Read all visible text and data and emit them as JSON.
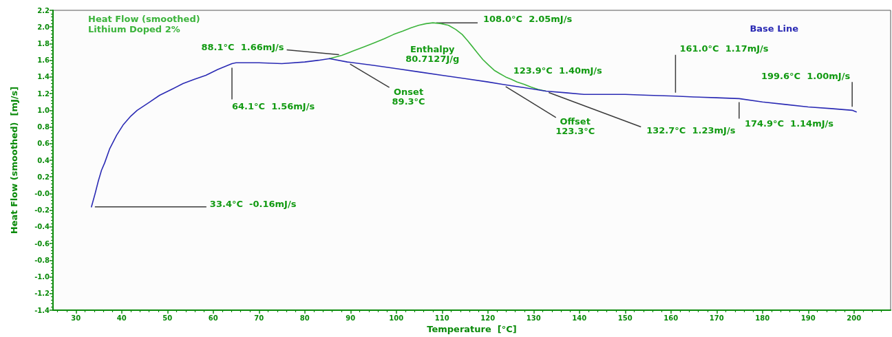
{
  "chart_data": {
    "type": "line",
    "xlabel": "Temperature  [°C]",
    "ylabel": "Heat Flow (smoothed)  [mJ/s]",
    "xlim": [
      25,
      208
    ],
    "xticks": [
      {
        "value": 26,
        "label": null
      },
      {
        "value": 28,
        "label": null
      },
      30,
      {
        "value": 32,
        "label": null
      },
      {
        "value": 34,
        "label": null
      },
      {
        "value": 36,
        "label": null
      },
      {
        "value": 38,
        "label": null
      },
      40,
      {
        "value": 42,
        "label": null
      },
      {
        "value": 44,
        "label": null
      },
      {
        "value": 46,
        "label": null
      },
      {
        "value": 48,
        "label": null
      },
      50,
      {
        "value": 52,
        "label": null
      },
      {
        "value": 54,
        "label": null
      },
      {
        "value": 56,
        "label": null
      },
      {
        "value": 58,
        "label": null
      },
      60,
      {
        "value": 62,
        "label": null
      },
      {
        "value": 64,
        "label": null
      },
      {
        "value": 66,
        "label": null
      },
      {
        "value": 68,
        "label": null
      },
      70,
      {
        "value": 72,
        "label": null
      },
      {
        "value": 74,
        "label": null
      },
      {
        "value": 76,
        "label": null
      },
      {
        "value": 78,
        "label": null
      },
      80,
      {
        "value": 82,
        "label": null
      },
      {
        "value": 84,
        "label": null
      },
      {
        "value": 86,
        "label": null
      },
      {
        "value": 88,
        "label": null
      },
      90,
      {
        "value": 92,
        "label": null
      },
      {
        "value": 94,
        "label": null
      },
      {
        "value": 96,
        "label": null
      },
      {
        "value": 98,
        "label": null
      },
      100,
      {
        "value": 102,
        "label": null
      },
      {
        "value": 104,
        "label": null
      },
      {
        "value": 106,
        "label": null
      },
      {
        "value": 108,
        "label": null
      },
      110,
      {
        "value": 112,
        "label": null
      },
      {
        "value": 114,
        "label": null
      },
      {
        "value": 116,
        "label": null
      },
      {
        "value": 118,
        "label": null
      },
      120,
      {
        "value": 122,
        "label": null
      },
      {
        "value": 124,
        "label": null
      },
      {
        "value": 126,
        "label": null
      },
      {
        "value": 128,
        "label": null
      },
      130,
      {
        "value": 132,
        "label": null
      },
      {
        "value": 134,
        "label": null
      },
      {
        "value": 136,
        "label": null
      },
      {
        "value": 138,
        "label": null
      },
      140,
      {
        "value": 142,
        "label": null
      },
      {
        "value": 144,
        "label": null
      },
      {
        "value": 146,
        "label": null
      },
      {
        "value": 148,
        "label": null
      },
      150,
      {
        "value": 152,
        "label": null
      },
      {
        "value": 154,
        "label": null
      },
      {
        "value": 156,
        "label": null
      },
      {
        "value": 158,
        "label": null
      },
      160,
      {
        "value": 162,
        "label": null
      },
      {
        "value": 164,
        "label": null
      },
      {
        "value": 166,
        "label": null
      },
      {
        "value": 168,
        "label": null
      },
      170,
      {
        "value": 172,
        "label": null
      },
      {
        "value": 174,
        "label": null
      },
      {
        "value": 176,
        "label": null
      },
      {
        "value": 178,
        "label": null
      },
      180,
      {
        "value": 182,
        "label": null
      },
      {
        "value": 184,
        "label": null
      },
      {
        "value": 186,
        "label": null
      },
      {
        "value": 188,
        "label": null
      },
      190,
      {
        "value": 192,
        "label": null
      },
      {
        "value": 194,
        "label": null
      },
      {
        "value": 196,
        "label": null
      },
      {
        "value": 198,
        "label": null
      },
      200,
      {
        "value": 202,
        "label": null
      },
      {
        "value": 204,
        "label": null
      },
      {
        "value": 206,
        "label": null
      }
    ],
    "ylim": [
      -1.4,
      2.2
    ],
    "yticks": [
      -1.4,
      {
        "value": -1.36,
        "label": null
      },
      {
        "value": -1.32,
        "label": null
      },
      {
        "value": -1.28,
        "label": null
      },
      {
        "value": -1.24,
        "label": null
      },
      -1.2,
      {
        "value": -1.16,
        "label": null
      },
      {
        "value": -1.12,
        "label": null
      },
      {
        "value": -1.08,
        "label": null
      },
      {
        "value": -1.04,
        "label": null
      },
      {
        "value": -1,
        "label": "-1.0"
      },
      {
        "value": -0.96,
        "label": null
      },
      {
        "value": -0.92,
        "label": null
      },
      {
        "value": -0.88,
        "label": null
      },
      {
        "value": -0.84,
        "label": null
      },
      -0.8,
      {
        "value": -0.76,
        "label": null
      },
      {
        "value": -0.72,
        "label": null
      },
      {
        "value": -0.68,
        "label": null
      },
      {
        "value": -0.64,
        "label": null
      },
      -0.6,
      {
        "value": -0.56,
        "label": null
      },
      {
        "value": -0.52,
        "label": null
      },
      {
        "value": -0.48,
        "label": null
      },
      {
        "value": -0.44,
        "label": null
      },
      -0.4,
      {
        "value": -0.36,
        "label": null
      },
      {
        "value": -0.32,
        "label": null
      },
      {
        "value": -0.28,
        "label": null
      },
      {
        "value": -0.24,
        "label": null
      },
      -0.2,
      {
        "value": -0.16,
        "label": null
      },
      {
        "value": -0.12,
        "label": null
      },
      {
        "value": -0.08,
        "label": null
      },
      {
        "value": -0.04,
        "label": null
      },
      {
        "value": 0,
        "label": "-0.0"
      },
      {
        "value": 0.04,
        "label": null
      },
      {
        "value": 0.08,
        "label": null
      },
      {
        "value": 0.12,
        "label": null
      },
      {
        "value": 0.16,
        "label": null
      },
      0.2,
      {
        "value": 0.24,
        "label": null
      },
      {
        "value": 0.28,
        "label": null
      },
      {
        "value": 0.32,
        "label": null
      },
      {
        "value": 0.36,
        "label": null
      },
      0.4,
      {
        "value": 0.44,
        "label": null
      },
      {
        "value": 0.48,
        "label": null
      },
      {
        "value": 0.52,
        "label": null
      },
      {
        "value": 0.56,
        "label": null
      },
      0.6,
      {
        "value": 0.64,
        "label": null
      },
      {
        "value": 0.68,
        "label": null
      },
      {
        "value": 0.72,
        "label": null
      },
      {
        "value": 0.76,
        "label": null
      },
      0.8,
      {
        "value": 0.84,
        "label": null
      },
      {
        "value": 0.88,
        "label": null
      },
      {
        "value": 0.92,
        "label": null
      },
      {
        "value": 0.96,
        "label": null
      },
      {
        "value": 1,
        "label": "1.0"
      },
      {
        "value": 1.04,
        "label": null
      },
      {
        "value": 1.08,
        "label": null
      },
      {
        "value": 1.12,
        "label": null
      },
      {
        "value": 1.16,
        "label": null
      },
      1.2,
      {
        "value": 1.24,
        "label": null
      },
      {
        "value": 1.28,
        "label": null
      },
      {
        "value": 1.32,
        "label": null
      },
      {
        "value": 1.36,
        "label": null
      },
      1.4,
      {
        "value": 1.44,
        "label": null
      },
      {
        "value": 1.48,
        "label": null
      },
      {
        "value": 1.52,
        "label": null
      },
      {
        "value": 1.56,
        "label": null
      },
      1.6,
      {
        "value": 1.64,
        "label": null
      },
      {
        "value": 1.68,
        "label": null
      },
      {
        "value": 1.72,
        "label": null
      },
      {
        "value": 1.76,
        "label": null
      },
      1.8,
      {
        "value": 1.84,
        "label": null
      },
      {
        "value": 1.88,
        "label": null
      },
      {
        "value": 1.92,
        "label": null
      },
      {
        "value": 1.96,
        "label": null
      },
      {
        "value": 2,
        "label": "2.0"
      },
      {
        "value": 2.04,
        "label": null
      },
      {
        "value": 2.08,
        "label": null
      },
      {
        "value": 2.12,
        "label": null
      },
      {
        "value": 2.16,
        "label": null
      },
      2.2
    ],
    "legend": "top",
    "line_style": "solid",
    "series": [
      {
        "name": "Heat Flow (smoothed)\nLithium Doped 2%",
        "color": "#3cb43c",
        "x": [
          85.4,
          88.1,
          90.5,
          92.9,
          95.2,
          97.4,
          99.4,
          101.4,
          103.2,
          104.9,
          106.5,
          108.0,
          109.8,
          111.4,
          113.0,
          114.4,
          115.5,
          116.4,
          117.7,
          118.9,
          120.2,
          121.4,
          122.6,
          123.9,
          125.2,
          126.4,
          128.0,
          129.4,
          131.0,
          132.7
        ],
        "values": [
          1.62,
          1.66,
          1.71,
          1.76,
          1.81,
          1.86,
          1.91,
          1.95,
          1.99,
          2.02,
          2.04,
          2.05,
          2.04,
          2.02,
          1.97,
          1.91,
          1.84,
          1.78,
          1.69,
          1.61,
          1.54,
          1.48,
          1.44,
          1.4,
          1.37,
          1.34,
          1.31,
          1.28,
          1.25,
          1.23
        ]
      },
      {
        "name": "Base Line",
        "color": "#2a2ab4",
        "x": [
          33.4,
          34.2,
          34.9,
          35.6,
          36.3,
          37.4,
          38.9,
          40.4,
          42.0,
          43.4,
          45.9,
          48.3,
          50.9,
          53.4,
          55.8,
          58.4,
          61.0,
          64.1,
          65.0,
          70,
          75,
          80,
          83,
          85.4,
          89.3,
          95,
          100,
          105,
          110,
          115,
          120,
          123.3,
          127,
          132.7,
          137,
          141,
          145,
          150,
          155,
          161.0,
          165,
          170,
          174.9,
          180,
          185,
          190,
          195,
          199.6,
          200.5
        ],
        "values": [
          -0.16,
          0.0,
          0.15,
          0.28,
          0.37,
          0.54,
          0.7,
          0.83,
          0.93,
          1.0,
          1.09,
          1.18,
          1.25,
          1.32,
          1.37,
          1.42,
          1.49,
          1.56,
          1.57,
          1.57,
          1.56,
          1.58,
          1.6,
          1.62,
          1.58,
          1.54,
          1.5,
          1.46,
          1.42,
          1.38,
          1.34,
          1.31,
          1.28,
          1.23,
          1.21,
          1.19,
          1.19,
          1.19,
          1.18,
          1.17,
          1.16,
          1.15,
          1.14,
          1.1,
          1.07,
          1.04,
          1.02,
          1.0,
          0.98
        ]
      }
    ],
    "annotations": [
      {
        "text": "33.4°C  -0.16mJ/s",
        "x": 33.4,
        "y": -0.16
      },
      {
        "text": "64.1°C  1.56mJ/s",
        "x": 64.1,
        "y": 1.56
      },
      {
        "text": "88.1°C  1.66mJ/s",
        "x": 88.1,
        "y": 1.66
      },
      {
        "text": "Onset\n89.3°C",
        "x": 89.3,
        "y": 1.58
      },
      {
        "text": "108.0°C  2.05mJ/s",
        "x": 108.0,
        "y": 2.05
      },
      "Enthalpy\n80.7127J/g",
      {
        "text": "123.9°C  1.40mJ/s",
        "x": 123.9,
        "y": 1.4
      },
      {
        "text": "Offset\n123.3°C",
        "x": 123.3,
        "y": 1.31
      },
      {
        "text": "132.7°C  1.23mJ/s",
        "x": 132.7,
        "y": 1.23
      },
      {
        "text": "161.0°C  1.17mJ/s",
        "x": 161.0,
        "y": 1.17
      },
      {
        "text": "174.9°C  1.14mJ/s",
        "x": 174.9,
        "y": 1.14
      },
      {
        "text": "199.6°C  1.00mJ/s",
        "x": 199.6,
        "y": 1.0
      }
    ]
  }
}
